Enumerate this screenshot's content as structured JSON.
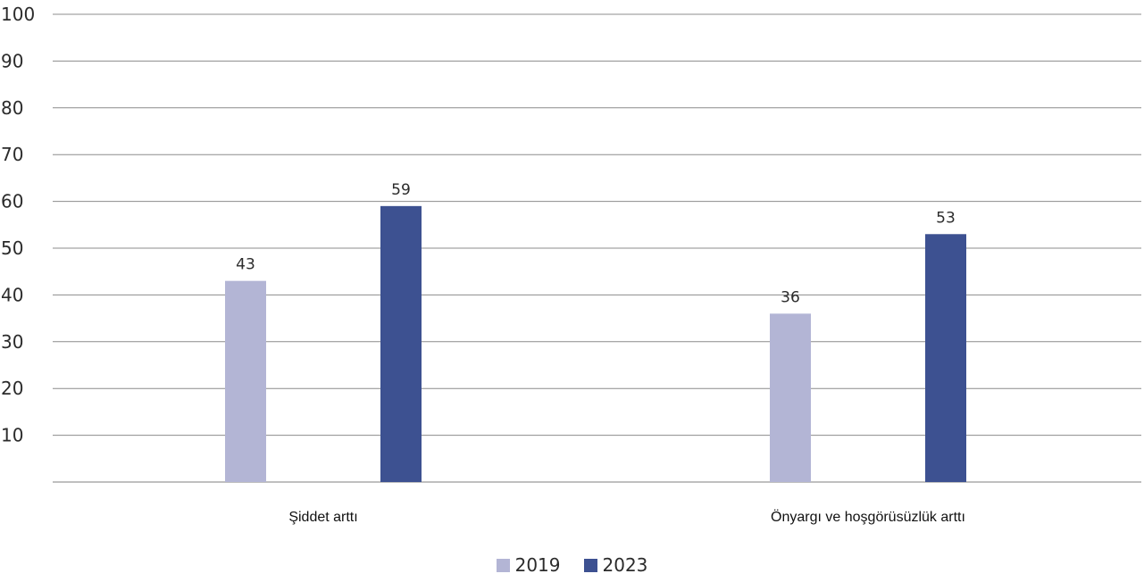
{
  "chart_data": {
    "type": "bar",
    "categories": [
      "Şiddet arttı",
      "Önyargı ve hoşgörüsüzlük arttı"
    ],
    "series": [
      {
        "name": "2019",
        "values": [
          43,
          36
        ],
        "color": "#b3b5d5"
      },
      {
        "name": "2023",
        "values": [
          59,
          53
        ],
        "color": "#3d5191"
      }
    ],
    "ylim": [
      0,
      100
    ],
    "yticks": [
      10,
      20,
      30,
      40,
      50,
      60,
      70,
      80,
      90,
      100
    ],
    "title": "",
    "xlabel": "",
    "ylabel": "",
    "grid": true,
    "legend_position": "bottom"
  }
}
